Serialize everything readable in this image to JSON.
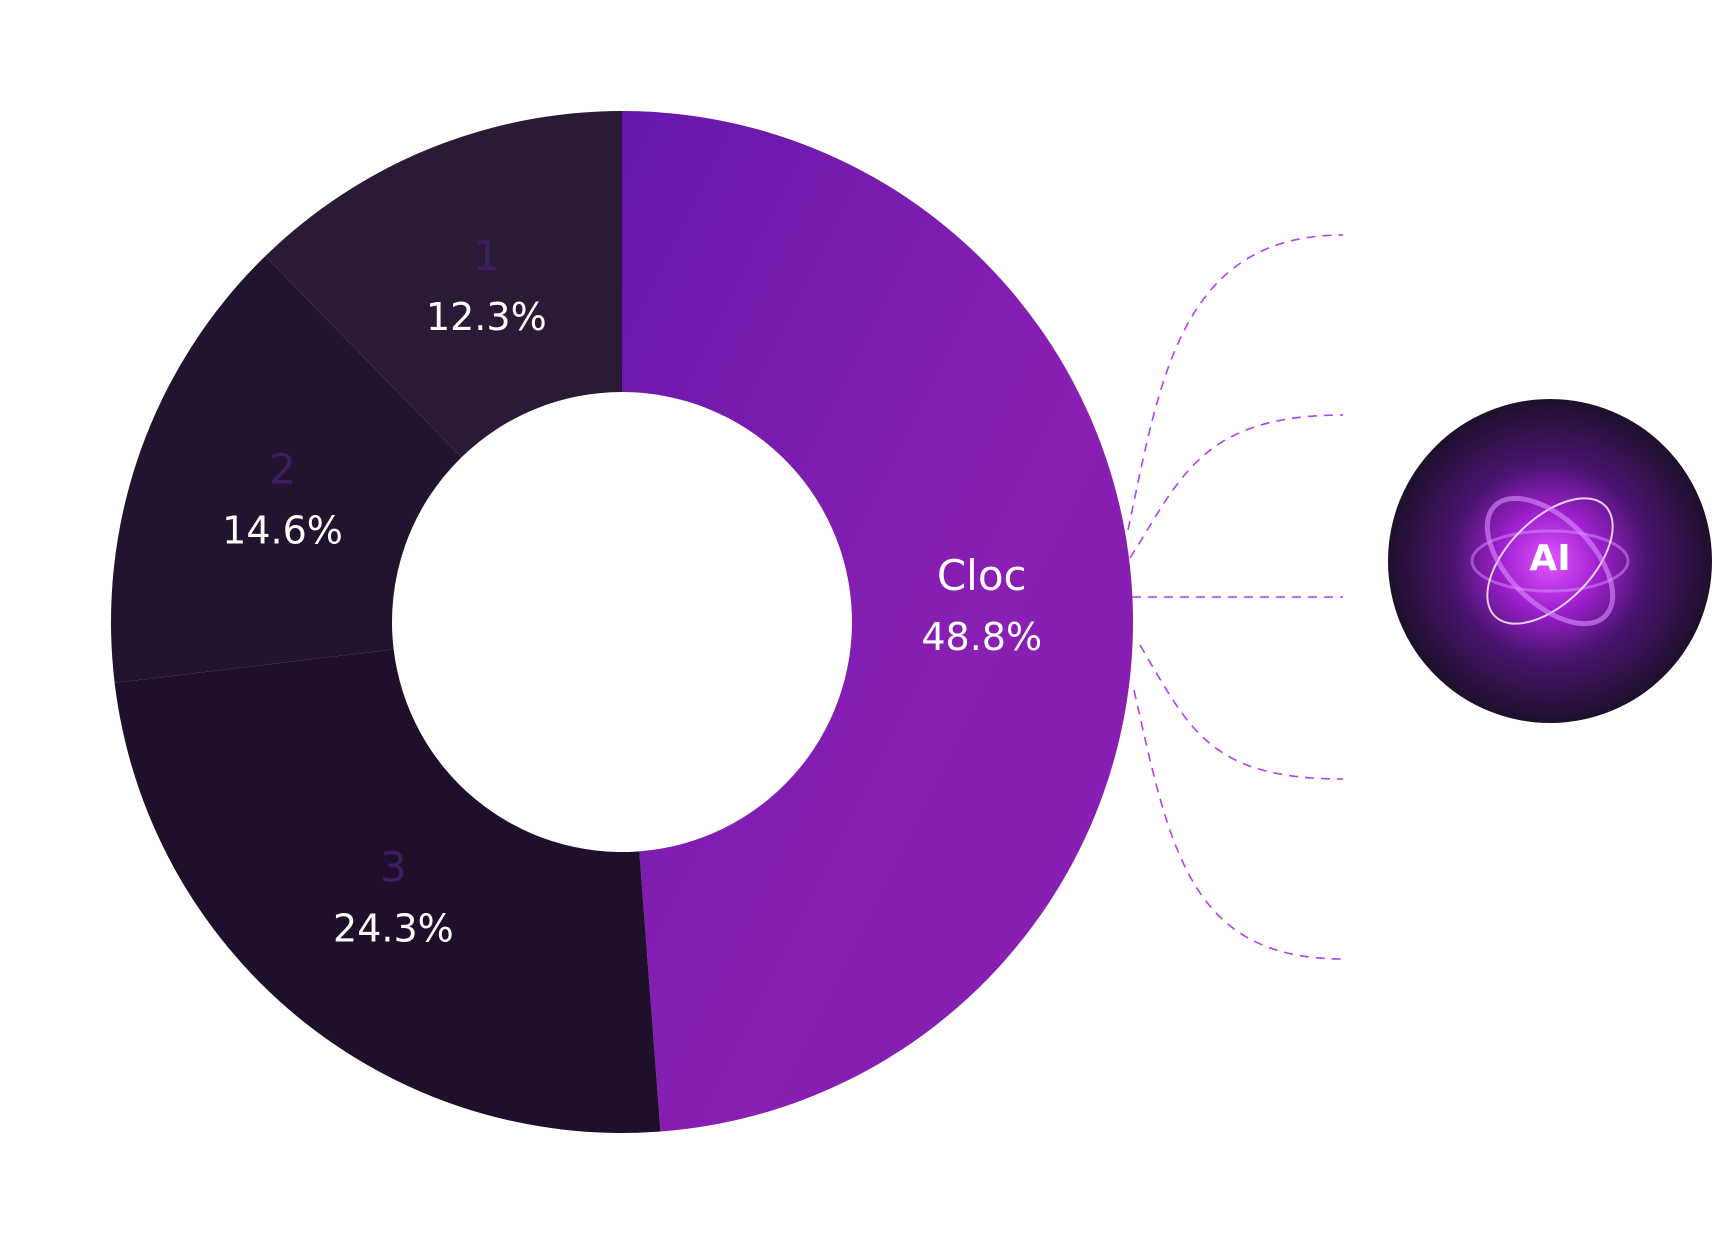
{
  "chart_data": {
    "type": "donut",
    "categories": [
      "Cloc",
      "3",
      "2",
      "1"
    ],
    "values": [
      48.8,
      24.3,
      14.6,
      12.3
    ],
    "value_labels": [
      "48.8%",
      "24.3%",
      "14.6%",
      "12.3%"
    ],
    "colors": [
      "#8a1fb3",
      "#1f0f2b",
      "#22132e",
      "#2b1a36"
    ],
    "name_colors": [
      "#ffffff",
      "#3d1d60",
      "#3d1d60",
      "#3d1d60"
    ]
  },
  "icon_label": "AI"
}
